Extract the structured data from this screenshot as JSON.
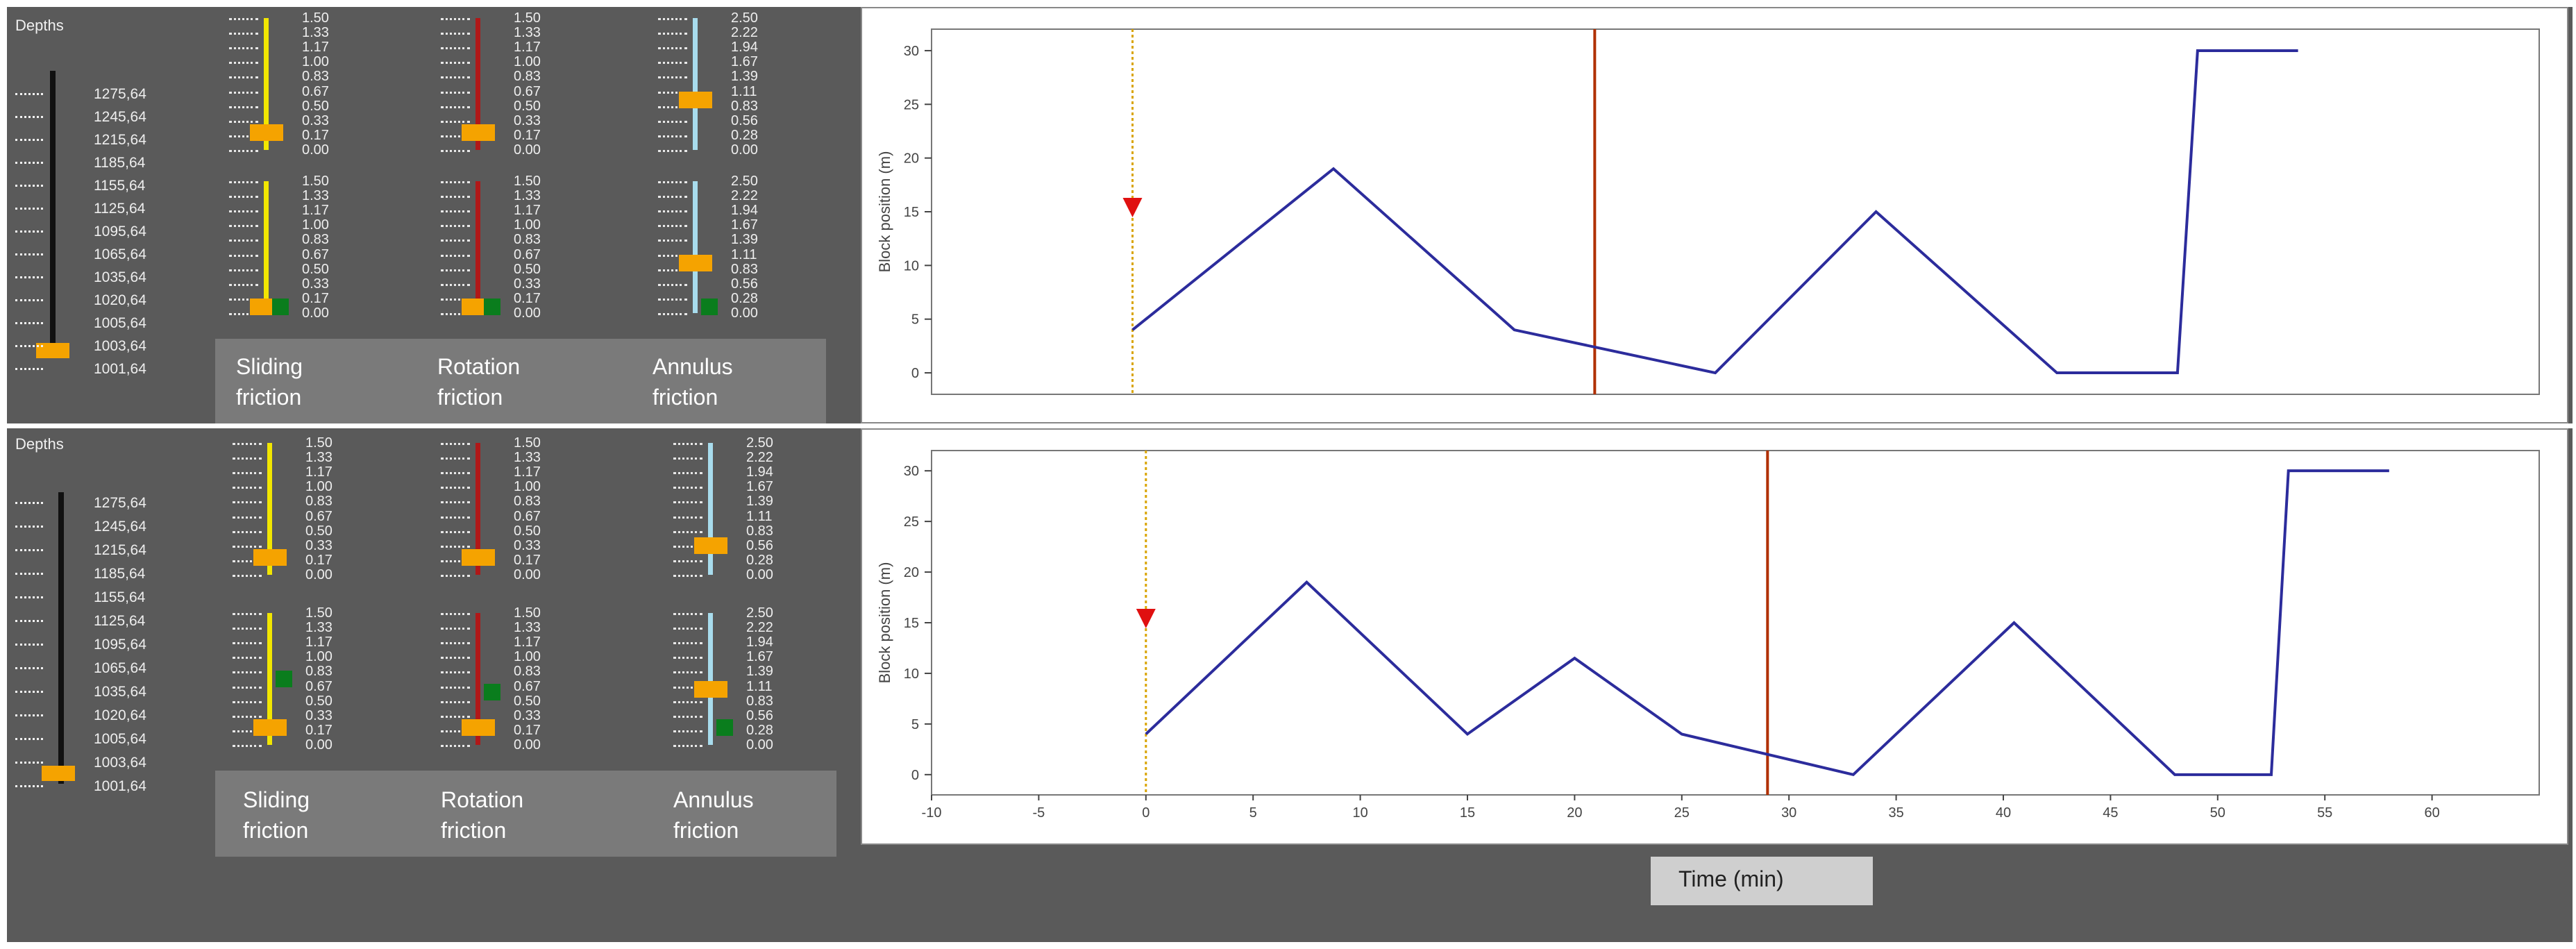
{
  "depths_panel": {
    "title": "Depths",
    "labels": [
      "1275,64",
      "1245,64",
      "1215,64",
      "1185,64",
      "1155,64",
      "1125,64",
      "1095,64",
      "1065,64",
      "1035,64",
      "1020,64",
      "1005,64",
      "1003,64",
      "1001,64"
    ]
  },
  "friction_scales": {
    "sliding": [
      "1.50",
      "1.33",
      "1.17",
      "1.00",
      "0.83",
      "0.67",
      "0.50",
      "0.33",
      "0.17",
      "0.00"
    ],
    "rotation": [
      "1.50",
      "1.33",
      "1.17",
      "1.00",
      "0.83",
      "0.67",
      "0.50",
      "0.33",
      "0.17",
      "0.00"
    ],
    "annulus": [
      "2.50",
      "2.22",
      "1.94",
      "1.67",
      "1.39",
      "1.11",
      "0.83",
      "0.56",
      "0.28",
      "0.00"
    ]
  },
  "friction_legend": {
    "sliding": "Sliding\nfriction",
    "rotation": "Rotation\nfriction",
    "annulus": "Annulus\nfriction"
  },
  "time_label": "Time (min)",
  "colors": {
    "sliding_track": "#f2e600",
    "rotation_track": "#b01818",
    "annulus_track": "#a8dced",
    "thumb": "#f5a300",
    "green_marker": "#0a7d1d",
    "line": "#2c2c9c",
    "marker": "#e01010",
    "cursor_dotted": "#d9a400",
    "cursor_solid": "#b03000"
  },
  "chart_data": [
    {
      "type": "line",
      "ylabel": "Block position (m)",
      "xlim": [
        -10,
        70
      ],
      "ylim": [
        -2,
        32
      ],
      "yticks": [
        0,
        5,
        10,
        15,
        20,
        25,
        30
      ],
      "x": [
        0,
        10,
        19,
        29,
        37,
        46,
        52,
        53,
        58
      ],
      "y": [
        4,
        19,
        4,
        0,
        15,
        0,
        0,
        30,
        30
      ],
      "marker_x": 0,
      "marker_y": 15,
      "cursor_dotted_x": 0,
      "cursor_solid_x": 23
    },
    {
      "type": "line",
      "ylabel": "Block position (m)",
      "xlabel": "Time (min)",
      "xlim": [
        -10,
        65
      ],
      "ylim": [
        -2,
        32
      ],
      "xticks": [
        -10,
        -5,
        0,
        5,
        10,
        15,
        20,
        25,
        30,
        35,
        40,
        45,
        50,
        55,
        60
      ],
      "yticks": [
        0,
        5,
        10,
        15,
        20,
        25,
        30
      ],
      "x": [
        0,
        7.5,
        15,
        20,
        25,
        33,
        40.5,
        48,
        52.5,
        53.3,
        58
      ],
      "y": [
        4,
        19,
        4,
        11.5,
        4,
        0,
        15,
        0,
        0,
        30,
        30
      ],
      "marker_x": 0,
      "marker_y": 15,
      "cursor_dotted_x": 0,
      "cursor_solid_x": 29
    }
  ]
}
